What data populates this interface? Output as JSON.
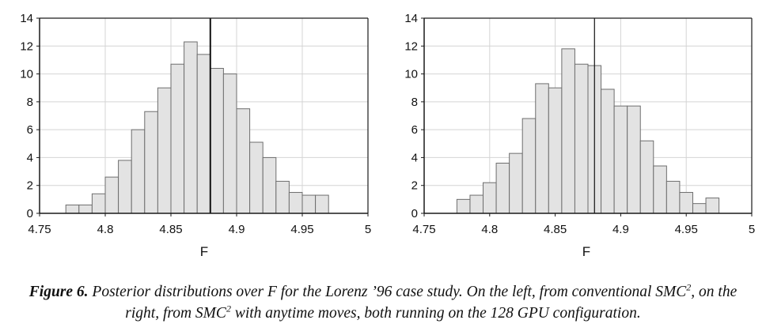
{
  "chart_data": [
    {
      "type": "bar",
      "title": "",
      "xlabel": "F",
      "ylabel": "",
      "xlim": [
        4.75,
        5.0
      ],
      "ylim": [
        0,
        14
      ],
      "xticks": [
        "4.75",
        "4.8",
        "4.85",
        "4.9",
        "4.95",
        "5"
      ],
      "yticks": [
        "0",
        "2",
        "4",
        "6",
        "8",
        "10",
        "12",
        "14"
      ],
      "bin_width": 0.01,
      "bin_starts": [
        4.77,
        4.78,
        4.79,
        4.8,
        4.81,
        4.82,
        4.83,
        4.84,
        4.85,
        4.86,
        4.87,
        4.88,
        4.89,
        4.9,
        4.91,
        4.92,
        4.93,
        4.94,
        4.95,
        4.96
      ],
      "values": [
        0.6,
        0.6,
        1.4,
        2.6,
        3.8,
        6.0,
        7.3,
        9.0,
        10.7,
        12.3,
        11.4,
        10.4,
        10.0,
        7.5,
        5.1,
        4.0,
        2.3,
        1.5,
        1.3,
        1.3
      ],
      "reference_line": 4.88,
      "grid": true
    },
    {
      "type": "bar",
      "title": "",
      "xlabel": "F",
      "ylabel": "",
      "xlim": [
        4.75,
        5.0
      ],
      "ylim": [
        0,
        14
      ],
      "xticks": [
        "4.75",
        "4.8",
        "4.85",
        "4.9",
        "4.95",
        "5"
      ],
      "yticks": [
        "0",
        "2",
        "4",
        "6",
        "8",
        "10",
        "12",
        "14"
      ],
      "bin_width": 0.01,
      "bin_starts": [
        4.775,
        4.785,
        4.795,
        4.805,
        4.815,
        4.825,
        4.835,
        4.845,
        4.855,
        4.865,
        4.875,
        4.885,
        4.895,
        4.905,
        4.915,
        4.925,
        4.935,
        4.945,
        4.955,
        4.965
      ],
      "values": [
        1.0,
        1.3,
        2.2,
        3.6,
        4.3,
        6.8,
        9.3,
        9.0,
        11.8,
        10.7,
        10.6,
        8.9,
        7.7,
        7.7,
        5.2,
        3.4,
        2.3,
        1.5,
        0.7,
        1.1
      ],
      "reference_line": 4.88,
      "grid": true
    }
  ],
  "caption": {
    "label": "Figure 6.",
    "text_1": " Posterior distributions over F for the Lorenz ’96 case study. On the left, from conventional SMC",
    "sup_1": "2",
    "text_2": ", on the right, from SMC",
    "sup_2": "2",
    "text_3": " with anytime moves, both running on the 128 GPU configuration."
  },
  "colors": {
    "bar_fill": "#e3e3e3",
    "bar_stroke": "#6e6e6e",
    "grid": "#d4d4d4",
    "axis": "#1a1a1a",
    "reference_line": "#111111"
  }
}
